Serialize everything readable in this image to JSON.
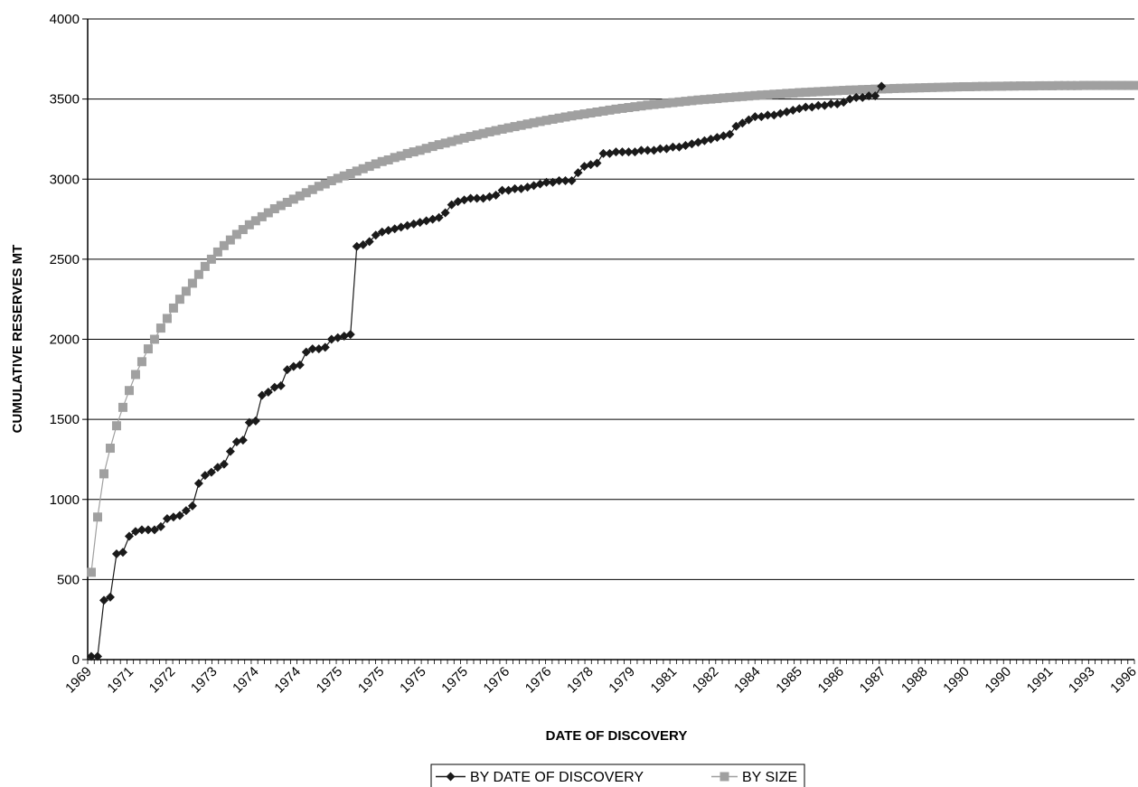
{
  "chart_data": {
    "type": "line",
    "title": "",
    "xlabel": "DATE OF DISCOVERY",
    "ylabel": "CUMULATIVE RESERVES MT",
    "ylim": [
      0,
      4000
    ],
    "yticks": [
      0,
      500,
      1000,
      1500,
      2000,
      2500,
      3000,
      3500,
      4000
    ],
    "grid": "horizontal",
    "legend_position": "bottom",
    "x_tick_labels": [
      "1969",
      "1971",
      "1972",
      "1973",
      "1974",
      "1974",
      "1975",
      "1975",
      "1975",
      "1975",
      "1976",
      "1976",
      "1978",
      "1979",
      "1981",
      "1982",
      "1984",
      "1985",
      "1986",
      "1987",
      "1988",
      "1990",
      "1990",
      "1991",
      "1993",
      "1996"
    ],
    "series": [
      {
        "name": "BY DATE OF DISCOVERY",
        "color": "#1a1a1a",
        "marker": "diamond",
        "values": [
          20,
          20,
          370,
          390,
          660,
          670,
          770,
          800,
          810,
          810,
          810,
          830,
          880,
          890,
          900,
          930,
          960,
          1100,
          1150,
          1170,
          1200,
          1220,
          1300,
          1360,
          1370,
          1480,
          1490,
          1650,
          1670,
          1700,
          1710,
          1810,
          1830,
          1840,
          1920,
          1940,
          1940,
          1950,
          2000,
          2010,
          2020,
          2030,
          2580,
          2590,
          2610,
          2650,
          2670,
          2680,
          2690,
          2700,
          2710,
          2720,
          2730,
          2740,
          2750,
          2760,
          2790,
          2840,
          2860,
          2870,
          2880,
          2880,
          2880,
          2890,
          2900,
          2930,
          2930,
          2940,
          2940,
          2950,
          2960,
          2970,
          2980,
          2980,
          2990,
          2990,
          2990,
          3040,
          3080,
          3090,
          3100,
          3160,
          3160,
          3170,
          3170,
          3170,
          3170,
          3180,
          3180,
          3180,
          3190,
          3190,
          3200,
          3200,
          3210,
          3220,
          3230,
          3240,
          3250,
          3260,
          3270,
          3280,
          3330,
          3350,
          3370,
          3390,
          3390,
          3400,
          3400,
          3410,
          3420,
          3430,
          3440,
          3450,
          3450,
          3460,
          3460,
          3470,
          3470,
          3480,
          3500,
          3510,
          3510,
          3520,
          3520,
          3580
        ]
      },
      {
        "name": "BY SIZE",
        "color": "#a0a0a0",
        "marker": "square",
        "values": [
          545,
          890,
          1160,
          1320,
          1460,
          1575,
          1680,
          1780,
          1860,
          1940,
          2000,
          2070,
          2130,
          2195,
          2250,
          2300,
          2350,
          2405,
          2455,
          2500,
          2545,
          2585,
          2620,
          2655,
          2685,
          2715,
          2740,
          2765,
          2790,
          2815,
          2835,
          2855,
          2875,
          2895,
          2915,
          2935,
          2955,
          2970,
          2990,
          3005,
          3020,
          3035,
          3050,
          3065,
          3080,
          3095,
          3110,
          3120,
          3135,
          3145,
          3160,
          3170,
          3180,
          3192,
          3204,
          3215,
          3225,
          3235,
          3246,
          3256,
          3266,
          3276,
          3285,
          3295,
          3303,
          3312,
          3320,
          3328,
          3336,
          3344,
          3352,
          3360,
          3367,
          3374,
          3381,
          3388,
          3395,
          3401,
          3407,
          3413,
          3419,
          3425,
          3431,
          3437,
          3442,
          3447,
          3452,
          3457,
          3462,
          3466,
          3470,
          3474,
          3478,
          3482,
          3486,
          3490,
          3494,
          3497,
          3500,
          3503,
          3507,
          3510,
          3513,
          3516,
          3519,
          3522,
          3525,
          3527,
          3530,
          3532,
          3535,
          3537,
          3540,
          3542,
          3544,
          3546,
          3548,
          3550,
          3552,
          3554,
          3556,
          3557,
          3559,
          3560,
          3562,
          3563,
          3564,
          3566,
          3567,
          3568,
          3569,
          3570,
          3571,
          3572,
          3573,
          3574,
          3575,
          3576,
          3577,
          3577,
          3578,
          3579,
          3579,
          3580,
          3580,
          3581,
          3581,
          3582,
          3582,
          3582,
          3583,
          3583,
          3583,
          3584,
          3584,
          3584,
          3584,
          3585,
          3585,
          3585,
          3585,
          3585,
          3585,
          3585,
          3585,
          3585
        ]
      }
    ]
  }
}
